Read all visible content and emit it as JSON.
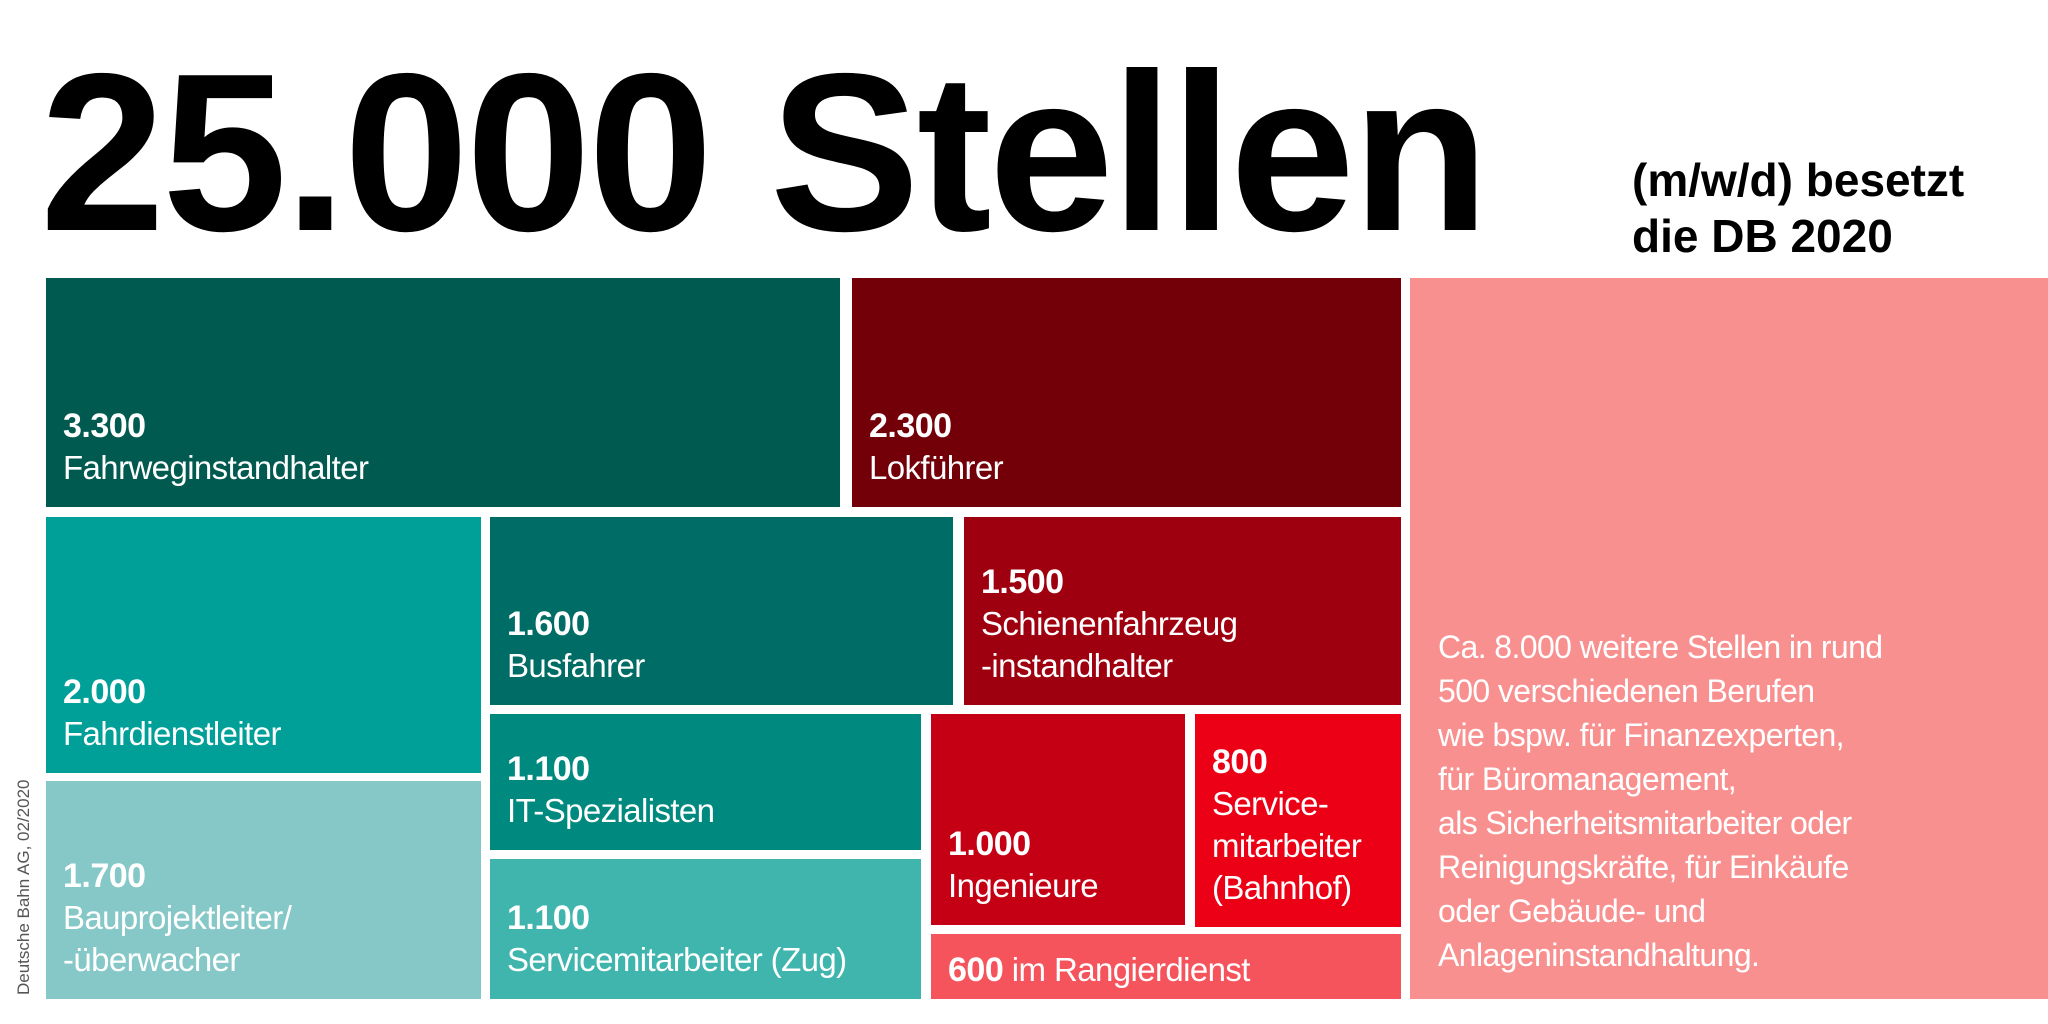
{
  "header": {
    "title": "25.000 Stellen",
    "subtitle_line1": "(m/w/d) besetzt",
    "subtitle_line2": "die DB 2020"
  },
  "credit": "Deutsche Bahn AG, 02/2020",
  "chart_data": {
    "type": "treemap",
    "total": 25000,
    "items": [
      {
        "value": 3300,
        "value_label": "3.300",
        "label": "Fahrweginstandhalter",
        "color": "#005a50"
      },
      {
        "value": 2300,
        "value_label": "2.300",
        "label": "Lokführer",
        "color": "#730009"
      },
      {
        "value": 2000,
        "value_label": "2.000",
        "label": "Fahrdienstleiter",
        "color": "#00a099"
      },
      {
        "value": 1700,
        "value_label": "1.700",
        "label": "Bauprojektleiter/\n-überwacher",
        "color": "#85c8c7"
      },
      {
        "value": 1600,
        "value_label": "1.600",
        "label": "Busfahrer",
        "color": "#006c66"
      },
      {
        "value": 1500,
        "value_label": "1.500",
        "label": "Schienenfahrzeug\n-instandhalter",
        "color": "#9e000f"
      },
      {
        "value": 1100,
        "value_label": "1.100",
        "label": "IT-Spezialisten",
        "color": "#00897f"
      },
      {
        "value": 1100,
        "value_label": "1.100",
        "label": "Servicemitarbeiter (Zug)",
        "color": "#3fb5ae"
      },
      {
        "value": 1000,
        "value_label": "1.000",
        "label": "Ingenieure",
        "color": "#c50014"
      },
      {
        "value": 800,
        "value_label": "800",
        "label": "Service-\nmitarbeiter\n(Bahnhof)",
        "color": "#ec0016"
      },
      {
        "value": 600,
        "value_label": "600",
        "label": " im Rangierdienst",
        "color": "#f5545c"
      },
      {
        "value": 8000,
        "value_label": "",
        "label": "Ca. 8.000 weitere Stellen in rund\n500 verschiedenen Berufen\nwie bspw. für Finanzexperten,\nfür Büromanagement,\nals Sicherheitsmitarbeiter oder\nReinigungskräfte, für Einkäufe\noder Gebäude- und\nAnlageninstandhaltung.",
        "color": "#f99090"
      }
    ]
  }
}
